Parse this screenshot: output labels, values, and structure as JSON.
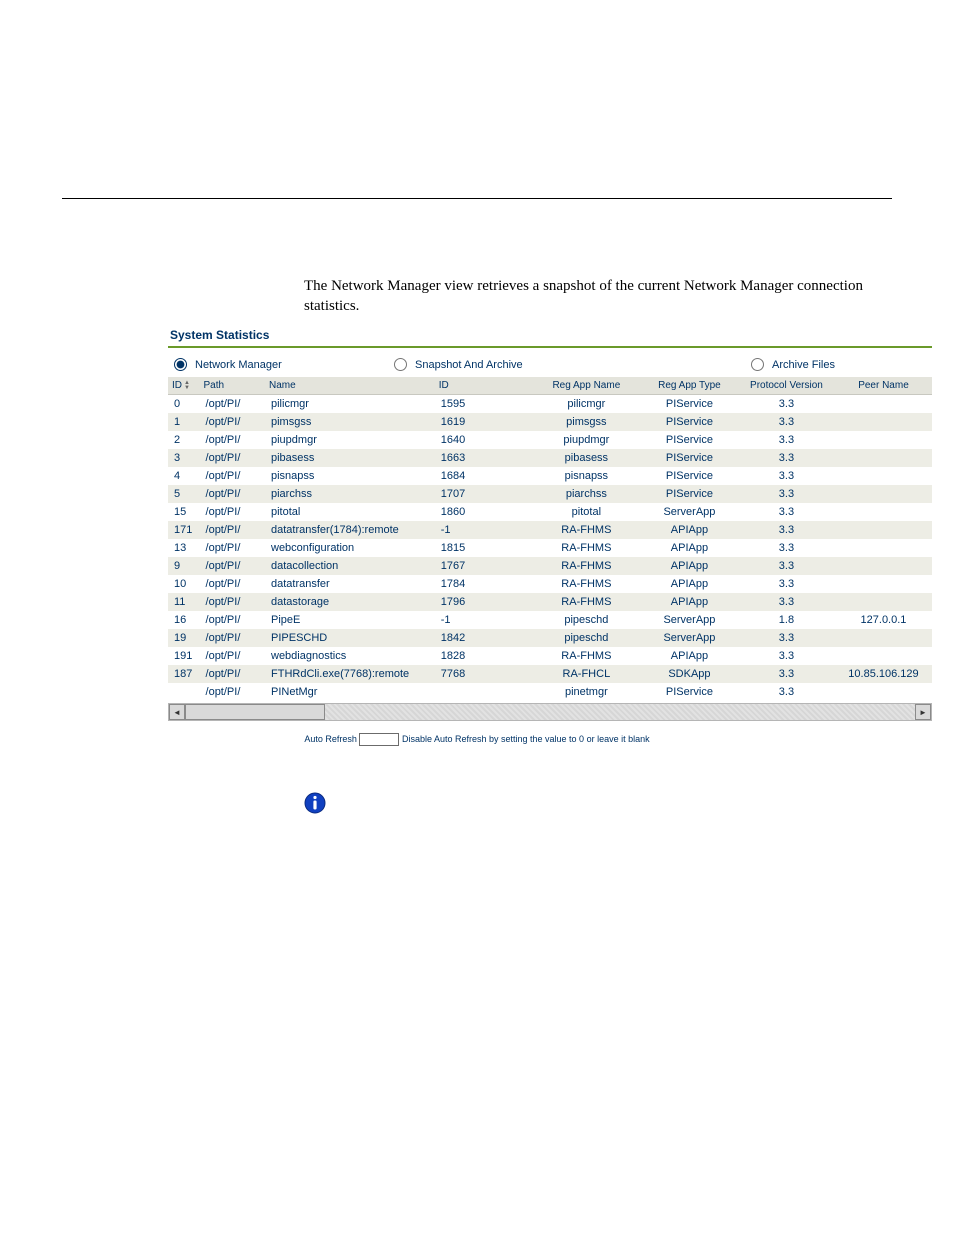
{
  "intro": "The Network Manager view retrieves a snapshot of the current Network Manager connection statistics.",
  "panel_title": "System Statistics",
  "radios": {
    "r1": "Network Manager",
    "r2": "Snapshot And Archive",
    "r3": "Archive Files",
    "selected": "r1"
  },
  "columns": {
    "id": "ID",
    "path": "Path",
    "name": "Name",
    "d": "ID",
    "ran": "Reg App Name",
    "rat": "Reg App Type",
    "pv": "Protocol Version",
    "pn": "Peer Name"
  },
  "rows": [
    {
      "id": "0",
      "path": "/opt/PI/",
      "name": "pilicmgr",
      "d": "1595",
      "ran": "pilicmgr",
      "rat": "PIService",
      "pv": "3.3",
      "pn": ""
    },
    {
      "id": "1",
      "path": "/opt/PI/",
      "name": "pimsgss",
      "d": "1619",
      "ran": "pimsgss",
      "rat": "PIService",
      "pv": "3.3",
      "pn": ""
    },
    {
      "id": "2",
      "path": "/opt/PI/",
      "name": "piupdmgr",
      "d": "1640",
      "ran": "piupdmgr",
      "rat": "PIService",
      "pv": "3.3",
      "pn": ""
    },
    {
      "id": "3",
      "path": "/opt/PI/",
      "name": "pibasess",
      "d": "1663",
      "ran": "pibasess",
      "rat": "PIService",
      "pv": "3.3",
      "pn": ""
    },
    {
      "id": "4",
      "path": "/opt/PI/",
      "name": "pisnapss",
      "d": "1684",
      "ran": "pisnapss",
      "rat": "PIService",
      "pv": "3.3",
      "pn": ""
    },
    {
      "id": "5",
      "path": "/opt/PI/",
      "name": "piarchss",
      "d": "1707",
      "ran": "piarchss",
      "rat": "PIService",
      "pv": "3.3",
      "pn": ""
    },
    {
      "id": "15",
      "path": "/opt/PI/",
      "name": "pitotal",
      "d": "1860",
      "ran": "pitotal",
      "rat": "ServerApp",
      "pv": "3.3",
      "pn": ""
    },
    {
      "id": "171",
      "path": "/opt/PI/",
      "name": "datatransfer(1784):remote",
      "d": "-1",
      "ran": "RA-FHMS",
      "rat": "APIApp",
      "pv": "3.3",
      "pn": ""
    },
    {
      "id": "13",
      "path": "/opt/PI/",
      "name": "webconfiguration",
      "d": "1815",
      "ran": "RA-FHMS",
      "rat": "APIApp",
      "pv": "3.3",
      "pn": ""
    },
    {
      "id": "9",
      "path": "/opt/PI/",
      "name": "datacollection",
      "d": "1767",
      "ran": "RA-FHMS",
      "rat": "APIApp",
      "pv": "3.3",
      "pn": ""
    },
    {
      "id": "10",
      "path": "/opt/PI/",
      "name": "datatransfer",
      "d": "1784",
      "ran": "RA-FHMS",
      "rat": "APIApp",
      "pv": "3.3",
      "pn": ""
    },
    {
      "id": "11",
      "path": "/opt/PI/",
      "name": "datastorage",
      "d": "1796",
      "ran": "RA-FHMS",
      "rat": "APIApp",
      "pv": "3.3",
      "pn": ""
    },
    {
      "id": "16",
      "path": "/opt/PI/",
      "name": "PipeE",
      "d": "-1",
      "ran": "pipeschd",
      "rat": "ServerApp",
      "pv": "1.8",
      "pn": "127.0.0.1"
    },
    {
      "id": "19",
      "path": "/opt/PI/",
      "name": "PIPESCHD",
      "d": "1842",
      "ran": "pipeschd",
      "rat": "ServerApp",
      "pv": "3.3",
      "pn": ""
    },
    {
      "id": "191",
      "path": "/opt/PI/",
      "name": "webdiagnostics",
      "d": "1828",
      "ran": "RA-FHMS",
      "rat": "APIApp",
      "pv": "3.3",
      "pn": ""
    },
    {
      "id": "187",
      "path": "/opt/PI/",
      "name": "FTHRdCli.exe(7768):remote",
      "d": "7768",
      "ran": "RA-FHCL",
      "rat": "SDKApp",
      "pv": "3.3",
      "pn": "10.85.106.129"
    },
    {
      "id": "",
      "path": "/opt/PI/",
      "name": "PINetMgr",
      "d": "",
      "ran": "pinetmgr",
      "rat": "PIService",
      "pv": "3.3",
      "pn": ""
    }
  ],
  "autorefresh": {
    "label_left": "Auto Refresh",
    "value": "",
    "label_right": "Disable Auto Refresh by setting the value to 0 or leave it blank"
  },
  "colors": {
    "brand": "#003366",
    "accent": "#6a9a2a",
    "row_alt": "#edede5",
    "header_bg": "#e4e4dc"
  }
}
